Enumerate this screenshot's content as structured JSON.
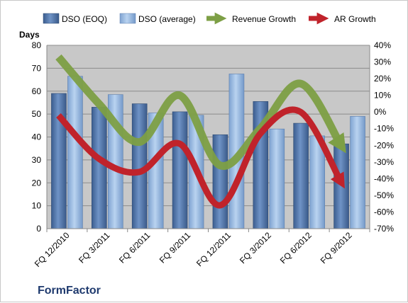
{
  "chart_data": {
    "type": "bar",
    "company": "FormFactor",
    "ylabel": "Days",
    "categories": [
      "FQ 12/2010",
      "FQ 3/2011",
      "FQ 6/2011",
      "FQ 9/2011",
      "FQ 12/2011",
      "FQ 3/2012",
      "FQ 6/2012",
      "FQ 9/2012"
    ],
    "ylim": [
      0,
      80
    ],
    "yticks": [
      0,
      10,
      20,
      30,
      40,
      50,
      60,
      70,
      80
    ],
    "y2lim": [
      -70,
      40
    ],
    "y2ticks": [
      "40%",
      "30%",
      "20%",
      "10%",
      "0%",
      "-10%",
      "-20%",
      "-30%",
      "-40%",
      "-50%",
      "-60%",
      "-70%"
    ],
    "y2tick_values": [
      40,
      30,
      20,
      10,
      0,
      -10,
      -20,
      -30,
      -40,
      -50,
      -60,
      -70
    ],
    "series": [
      {
        "name": "DSO (EOQ)",
        "kind": "bar",
        "axis": "left",
        "values": [
          59,
          53,
          54.5,
          51,
          41,
          55.5,
          46,
          37
        ]
      },
      {
        "name": "DSO (average)",
        "kind": "bar",
        "axis": "left",
        "values": [
          66.5,
          58.5,
          50.5,
          49.5,
          67.5,
          43.5,
          40.5,
          49
        ]
      },
      {
        "name": "Revenue Growth",
        "kind": "line",
        "axis": "right",
        "values": [
          33,
          5,
          -18,
          10,
          -32,
          -10,
          17,
          -20
        ]
      },
      {
        "name": "AR Growth",
        "kind": "line",
        "axis": "right",
        "values": [
          -2,
          -28,
          -36,
          -19,
          -56,
          -13,
          0,
          -42
        ]
      }
    ],
    "colors": {
      "bar_eoq": "#4a6fa5",
      "bar_avg": "#8fb2de",
      "revenue_growth": "#7d9f45",
      "ar_growth": "#c0232b",
      "plot_bg": "#c8c8c8"
    },
    "grid": true,
    "legend_position": "top"
  }
}
